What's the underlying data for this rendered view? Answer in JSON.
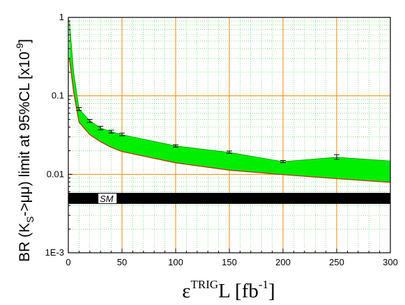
{
  "chart_data": {
    "type": "area",
    "xscale": "linear",
    "yscale": "log",
    "xlim": [
      0,
      300
    ],
    "ylim": [
      0.001,
      1
    ],
    "xticks": [
      0,
      50,
      100,
      150,
      200,
      250,
      300
    ],
    "xtick_labels": [
      "0",
      "50",
      "100",
      "150",
      "200",
      "250",
      "300"
    ],
    "yticks": [
      0.001,
      0.01,
      0.1,
      1
    ],
    "ytick_labels": [
      "1E-3",
      "0.01",
      "0.1",
      "1"
    ],
    "grid": true,
    "ylabel_parts": {
      "pre": "BR (K",
      "sub": "S",
      "mid": "->μμ) limit at 95%CL [x10",
      "sup": "-9",
      "post": "]"
    },
    "xlabel_parts": {
      "pre": "ε",
      "sup1": "TRIG",
      "mid": "L [fb",
      "sup2": "-1",
      "post": "]"
    },
    "band": {
      "x": [
        1,
        5,
        10,
        20,
        30,
        40,
        50,
        100,
        150,
        200,
        250,
        300
      ],
      "upper": [
        0.9,
        0.2,
        0.068,
        0.048,
        0.039,
        0.035,
        0.032,
        0.023,
        0.019,
        0.0145,
        0.0165,
        0.0148
      ],
      "lower": [
        0.3,
        0.11,
        0.046,
        0.032,
        0.026,
        0.022,
        0.0195,
        0.014,
        0.0113,
        0.0099,
        0.0088,
        0.0079
      ]
    },
    "errorbars": {
      "x": [
        10,
        20,
        30,
        40,
        50,
        100,
        150,
        200,
        250
      ],
      "y": [
        0.068,
        0.048,
        0.039,
        0.035,
        0.032,
        0.023,
        0.019,
        0.0145,
        0.0165
      ],
      "lo": [
        0.065,
        0.046,
        0.037,
        0.0335,
        0.031,
        0.0222,
        0.0185,
        0.0141,
        0.0155
      ],
      "hi": [
        0.071,
        0.05,
        0.041,
        0.0365,
        0.0335,
        0.0238,
        0.0198,
        0.015,
        0.0178
      ]
    },
    "sm_band": {
      "label": "SM",
      "y_low": 0.0042,
      "y_high": 0.0058,
      "label_x_range": [
        28,
        45
      ]
    }
  },
  "colors": {
    "band_fill": "#00ee00",
    "band_edge": "#cc2200",
    "grid_major": "#ee8800",
    "grid_minor": "#33cc33",
    "sm_fill": "#000000",
    "sm_label_bg": "#ffffff"
  }
}
